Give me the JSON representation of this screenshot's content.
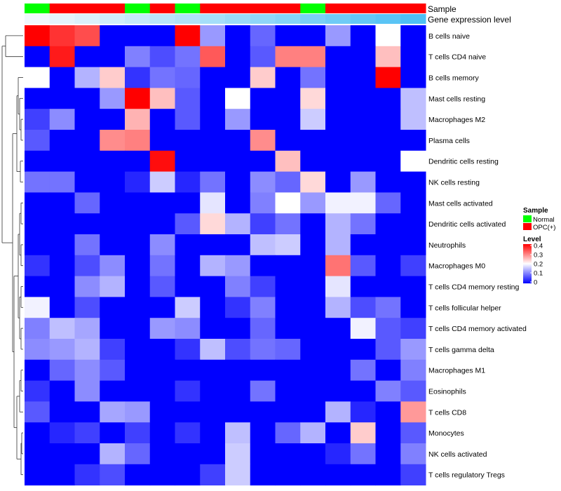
{
  "chart_data": {
    "type": "heatmap",
    "annotation_tracks": [
      {
        "label": "Sample"
      },
      {
        "label": "Gene expression level"
      }
    ],
    "sample_groups": [
      "Normal",
      "OPC(+)",
      "OPC(+)",
      "OPC(+)",
      "Normal",
      "OPC(+)",
      "Normal",
      "OPC(+)",
      "OPC(+)",
      "OPC(+)",
      "OPC(+)",
      "Normal",
      "OPC(+)",
      "OPC(+)",
      "OPC(+)",
      "OPC(+)"
    ],
    "expression_level": [
      0.02,
      0.04,
      0.06,
      0.08,
      0.1,
      0.12,
      0.14,
      0.16,
      0.18,
      0.2,
      0.22,
      0.24,
      0.26,
      0.28,
      0.3,
      0.32
    ],
    "rows": [
      {
        "label": "B cells naive",
        "values": [
          0.4,
          0.36,
          0.34,
          0,
          0,
          0,
          0.4,
          0.12,
          0,
          0.08,
          0,
          0,
          0.12,
          0,
          0.2,
          0
        ]
      },
      {
        "label": "T cells CD4 naive",
        "values": [
          0,
          0.38,
          0,
          0,
          0.1,
          0.06,
          0.09,
          0.33,
          0,
          0.07,
          0.3,
          0.3,
          0,
          0,
          0.25,
          0
        ]
      },
      {
        "label": "B cells memory",
        "values": [
          0.2,
          0,
          0.14,
          0.24,
          0.04,
          0.09,
          0.08,
          0,
          0,
          0.24,
          0,
          0.09,
          0,
          0,
          0.4,
          0
        ]
      },
      {
        "label": "Mast cells resting",
        "values": [
          0,
          0,
          0,
          0.12,
          0.4,
          0.25,
          0.07,
          0,
          0.2,
          0,
          0,
          0.23,
          0,
          0,
          0,
          0.15
        ]
      },
      {
        "label": "Macrophages M2",
        "values": [
          0.05,
          0.11,
          0,
          0,
          0.26,
          0,
          0.07,
          0,
          0.12,
          0,
          0,
          0.16,
          0,
          0,
          0,
          0.15
        ]
      },
      {
        "label": "Plasma cells",
        "values": [
          0.07,
          0,
          0,
          0.29,
          0.3,
          0,
          0,
          0,
          0,
          0.29,
          0,
          0,
          0,
          0,
          0,
          0
        ]
      },
      {
        "label": "Dendritic cells resting",
        "values": [
          0,
          0,
          0,
          0,
          0,
          0.39,
          0,
          0,
          0,
          0,
          0.25,
          0,
          0,
          0,
          0,
          0.2
        ]
      },
      {
        "label": "NK cells resting",
        "values": [
          0.09,
          0.09,
          0,
          0,
          0.03,
          0.16,
          0.03,
          0.09,
          0,
          0.11,
          0.08,
          0.23,
          0,
          0.12,
          0,
          0
        ]
      },
      {
        "label": "Mast cells activated",
        "values": [
          0,
          0,
          0.08,
          0,
          0,
          0,
          0,
          0.18,
          0,
          0.1,
          0.2,
          0.12,
          0.19,
          0.19,
          0.08,
          0
        ]
      },
      {
        "label": "Dendritic cells activated",
        "values": [
          0,
          0,
          0,
          0,
          0,
          0,
          0.07,
          0.23,
          0.14,
          0.05,
          0.09,
          0,
          0.14,
          0.09,
          0,
          0
        ]
      },
      {
        "label": "Neutrophils",
        "values": [
          0,
          0,
          0.09,
          0,
          0,
          0.11,
          0,
          0,
          0,
          0.15,
          0.16,
          0,
          0.14,
          0,
          0,
          0
        ]
      },
      {
        "label": "Macrophages M0",
        "values": [
          0.04,
          0,
          0.06,
          0.11,
          0,
          0.09,
          0,
          0.14,
          0.12,
          0,
          0,
          0,
          0.31,
          0.07,
          0,
          0.05
        ]
      },
      {
        "label": "T cells CD4 memory resting",
        "values": [
          0,
          0,
          0.11,
          0.14,
          0,
          0.07,
          0,
          0,
          0.1,
          0.05,
          0,
          0,
          0.18,
          0,
          0,
          0
        ]
      },
      {
        "label": "T cells follicular helper",
        "values": [
          0.19,
          0,
          0.06,
          0,
          0,
          0,
          0.16,
          0,
          0.04,
          0.1,
          0,
          0,
          0.14,
          0.06,
          0.09,
          0
        ]
      },
      {
        "label": "T cells CD4 memory activated",
        "values": [
          0.1,
          0.15,
          0.13,
          0,
          0,
          0.12,
          0.11,
          0,
          0,
          0.08,
          0,
          0,
          0,
          0.19,
          0.07,
          0.05
        ]
      },
      {
        "label": "T cells gamma delta",
        "values": [
          0.11,
          0.12,
          0.14,
          0.05,
          0,
          0,
          0.04,
          0.15,
          0.06,
          0.09,
          0.08,
          0,
          0,
          0,
          0.07,
          0.12
        ]
      },
      {
        "label": "Macrophages M1",
        "values": [
          0,
          0.08,
          0.11,
          0.07,
          0,
          0,
          0,
          0,
          0,
          0,
          0,
          0,
          0,
          0.09,
          0,
          0.1
        ]
      },
      {
        "label": "Eosinophils",
        "values": [
          0.04,
          0,
          0.11,
          0,
          0,
          0,
          0.04,
          0,
          0,
          0.09,
          0,
          0,
          0,
          0,
          0.1,
          0.07
        ]
      },
      {
        "label": "T cells CD8",
        "values": [
          0.07,
          0,
          0,
          0.13,
          0.12,
          0,
          0,
          0,
          0,
          0,
          0,
          0,
          0.14,
          0.03,
          0,
          0.28
        ]
      },
      {
        "label": "Monocytes",
        "values": [
          0,
          0.03,
          0.05,
          0,
          0.05,
          0,
          0.04,
          0,
          0.15,
          0,
          0.08,
          0.14,
          0,
          0.24,
          0,
          0.07
        ]
      },
      {
        "label": "NK cells activated",
        "values": [
          0,
          0,
          0,
          0.14,
          0.08,
          0,
          0,
          0,
          0.16,
          0,
          0,
          0,
          0.03,
          0.09,
          0,
          0.1
        ]
      },
      {
        "label": "T cells regulatory  Tregs",
        "values": [
          0,
          0,
          0.04,
          0.06,
          0,
          0,
          0,
          0.05,
          0.16,
          0,
          0,
          0,
          0,
          0,
          0,
          0.05
        ]
      }
    ],
    "legend": {
      "sample": {
        "title": "Sample",
        "entries": [
          {
            "label": "Normal",
            "color": "#00ff00"
          },
          {
            "label": "OPC(+)",
            "color": "#ff0000"
          }
        ]
      },
      "level": {
        "title": "Level",
        "range": [
          0,
          0.4
        ],
        "ticks": [
          "0.4",
          "0.3",
          "0.2",
          "0.1",
          "0"
        ]
      }
    },
    "color_scale": {
      "low": "#0000ff",
      "mid": "#ffffff",
      "high": "#ff0000"
    },
    "annotation_colors": {
      "normal": "#00ff00",
      "opc": "#ff0000",
      "level_low": "#f0f8fd",
      "level_high": "#4fc0f4"
    },
    "dendrogram": "row clustering, left side"
  }
}
